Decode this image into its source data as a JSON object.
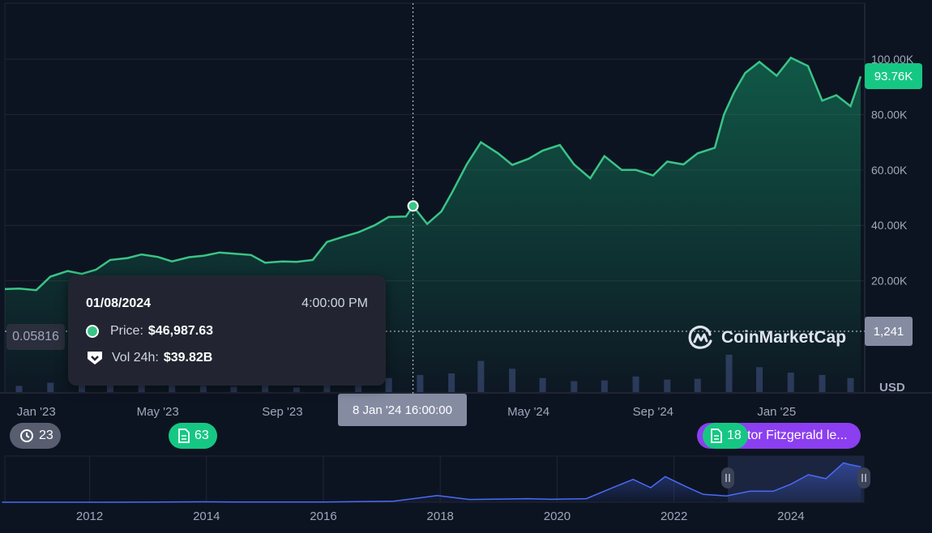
{
  "chart_data": {
    "type": "area",
    "price_series": {
      "x": [
        "2022-12-01",
        "2022-12-15",
        "2023-01-01",
        "2023-01-15",
        "2023-02-01",
        "2023-02-15",
        "2023-03-01",
        "2023-03-15",
        "2023-04-01",
        "2023-04-15",
        "2023-05-01",
        "2023-05-15",
        "2023-06-01",
        "2023-06-15",
        "2023-07-01",
        "2023-07-15",
        "2023-08-01",
        "2023-08-15",
        "2023-09-01",
        "2023-09-15",
        "2023-10-01",
        "2023-10-15",
        "2023-11-01",
        "2023-11-15",
        "2023-12-01",
        "2023-12-15",
        "2024-01-01",
        "2024-01-08",
        "2024-01-22",
        "2024-02-05",
        "2024-02-15",
        "2024-03-01",
        "2024-03-15",
        "2024-04-01",
        "2024-04-15",
        "2024-05-01",
        "2024-05-15",
        "2024-06-01",
        "2024-06-15",
        "2024-07-01",
        "2024-07-15",
        "2024-08-01",
        "2024-08-15",
        "2024-09-01",
        "2024-09-15",
        "2024-10-01",
        "2024-10-15",
        "2024-11-01",
        "2024-11-10",
        "2024-11-20",
        "2024-12-01",
        "2024-12-15",
        "2025-01-01",
        "2025-01-15",
        "2025-02-01",
        "2025-02-15",
        "2025-03-01",
        "2025-03-15",
        "2025-03-25"
      ],
      "y": [
        17000,
        17200,
        16600,
        21500,
        23500,
        22500,
        24000,
        27500,
        28200,
        29500,
        28600,
        27000,
        28500,
        29000,
        30200,
        29800,
        29300,
        26500,
        27000,
        26800,
        27500,
        34000,
        36000,
        37500,
        40000,
        43000,
        43200,
        46987,
        40500,
        45000,
        51500,
        62000,
        70000,
        66000,
        61800,
        64000,
        67000,
        69000,
        62000,
        57000,
        65000,
        60000,
        60000,
        58000,
        63000,
        62000,
        66000,
        68000,
        80000,
        88000,
        95000,
        99000,
        94000,
        100500,
        97500,
        85000,
        87000,
        83000,
        93760
      ]
    },
    "volume_series": {
      "x": [
        "2022-12-15",
        "2023-01-15",
        "2023-02-15",
        "2023-03-15",
        "2023-04-15",
        "2023-05-15",
        "2023-06-15",
        "2023-07-15",
        "2023-08-15",
        "2023-09-15",
        "2023-10-15",
        "2023-11-15",
        "2023-12-15",
        "2024-01-15",
        "2024-02-15",
        "2024-03-15",
        "2024-04-15",
        "2024-05-15",
        "2024-06-15",
        "2024-07-15",
        "2024-08-15",
        "2024-09-15",
        "2024-10-15",
        "2024-11-15",
        "2024-12-15",
        "2025-01-15",
        "2025-02-15",
        "2025-03-15"
      ],
      "y": [
        8,
        12,
        15,
        18,
        10,
        9,
        8,
        7,
        9,
        6,
        10,
        14,
        18,
        22,
        24,
        40,
        30,
        18,
        14,
        15,
        20,
        16,
        17,
        48,
        32,
        25,
        22,
        18
      ],
      "unit": "B"
    },
    "y_axis": {
      "ticks": [
        "20.00K",
        "40.00K",
        "60.00K",
        "80.00K",
        "100.00K"
      ],
      "ylim": [
        0,
        105000
      ],
      "currency": "USD"
    },
    "x_axis": {
      "ticks": [
        "Jan '23",
        "May '23",
        "Sep '23",
        "May '24",
        "Sep '24",
        "Jan '25"
      ]
    },
    "navigator": {
      "ticks": [
        "2012",
        "2014",
        "2016",
        "2018",
        "2020",
        "2022",
        "2024"
      ],
      "history": {
        "x": [
          2010.5,
          2012,
          2013,
          2013.9,
          2014.5,
          2016,
          2017.2,
          2017.95,
          2018.5,
          2019.5,
          2019.9,
          2020.5,
          2021.0,
          2021.3,
          2021.6,
          2021.85,
          2022.2,
          2022.5,
          2022.9,
          2023.3,
          2023.7,
          2024.0,
          2024.3,
          2024.6,
          2024.9,
          2025.0,
          2025.2
        ],
        "y": [
          0,
          100,
          200,
          1000,
          500,
          600,
          2500,
          17000,
          7000,
          9000,
          7500,
          9000,
          40000,
          58000,
          37000,
          65000,
          40000,
          20000,
          16000,
          28000,
          28000,
          46000,
          70000,
          60000,
          100000,
          96000,
          90000
        ]
      }
    },
    "current_price_label": "93.76K",
    "crosshair_value_label": "1,241",
    "crosshair_date_label": "8 Jan '24 16:00:00",
    "left_scale_label": "0.05816",
    "currency_label": "USD"
  },
  "tooltip": {
    "date": "01/08/2024",
    "time": "4:00:00 PM",
    "price_label": "Price:",
    "price_value": "$46,987.63",
    "vol_label": "Vol 24h:",
    "vol_value": "$39.82B"
  },
  "markers": {
    "history_count": "23",
    "news_count_1": "63",
    "news_count_2": "18",
    "news_headline": "tor Fitzgerald le..."
  },
  "watermark": "CoinMarketCap",
  "colors": {
    "line": "#3ac487",
    "background": "#0d1421",
    "volume": "#2c3659",
    "navigator_line": "#4a6bf5",
    "highlight": "#16c784",
    "news_purple": "#8b3ff0"
  }
}
